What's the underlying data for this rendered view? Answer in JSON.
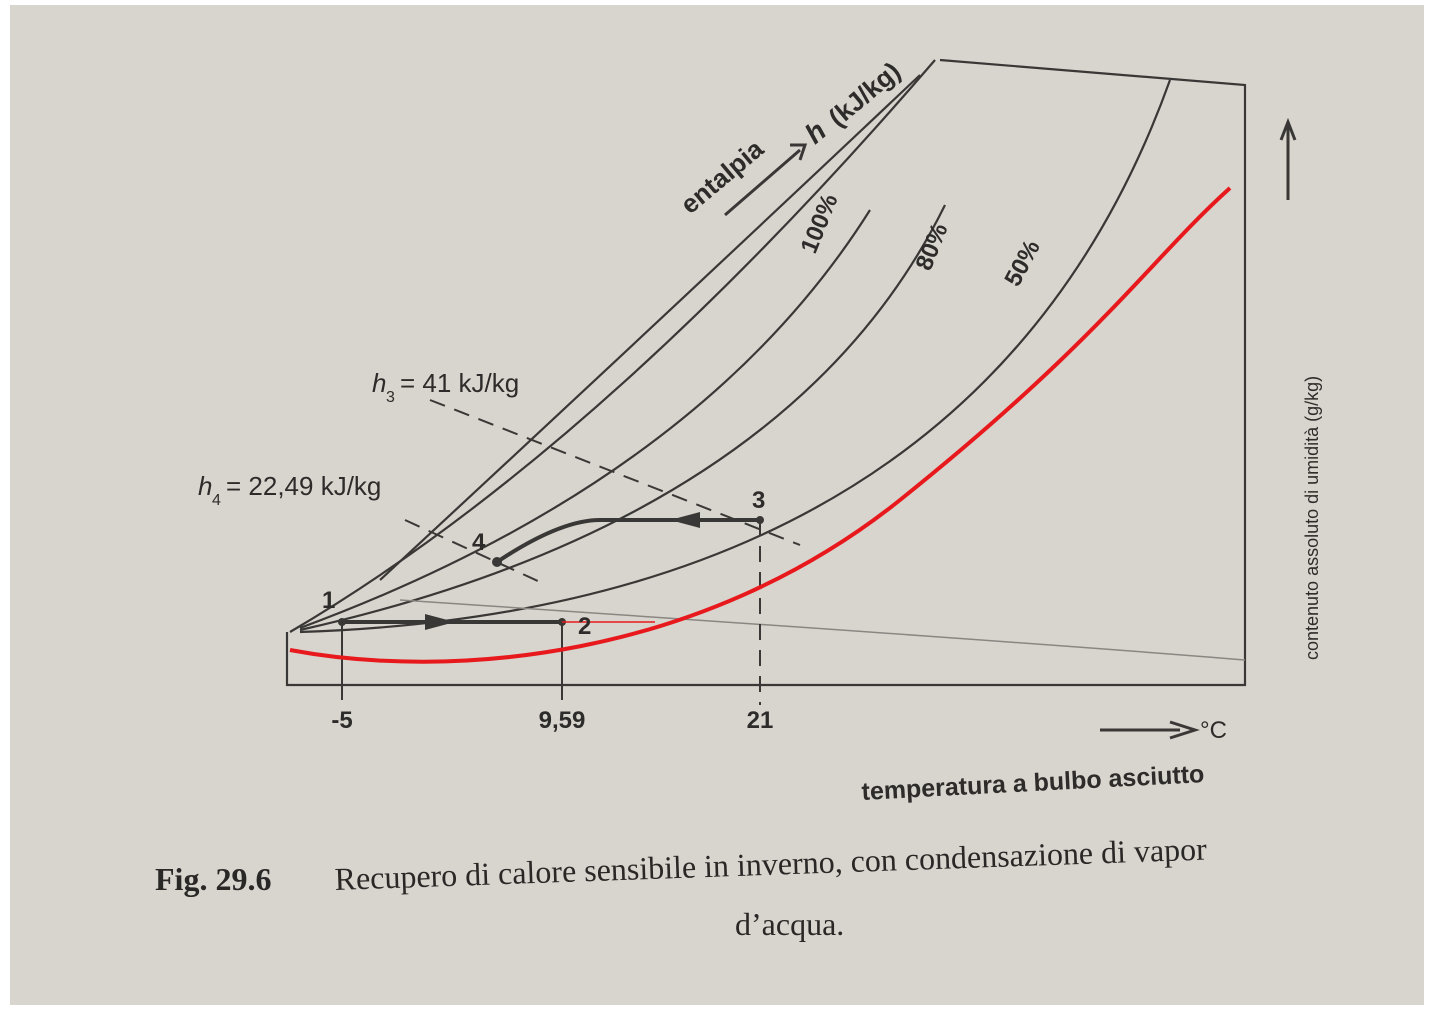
{
  "figure": {
    "enthalpy_axis": {
      "word": "entalpia",
      "symbol": "h",
      "unit": "(kJ/kg)"
    },
    "curves": [
      "100%",
      "80%",
      "50%"
    ],
    "h3": {
      "symbol": "h",
      "sub": "3",
      "text": "= 41 kJ/kg"
    },
    "h4": {
      "symbol": "h",
      "sub": "4",
      "text": "= 22,49 kJ/kg"
    },
    "points": [
      "1",
      "2",
      "3",
      "4"
    ],
    "x_ticks": [
      "-5",
      "9,59",
      "21"
    ],
    "x_unit": "°C",
    "x_label": "temperatura a bulbo asciutto",
    "y_label": "contenuto assoluto di umidità (g/kg)",
    "caption": {
      "number": "Fig. 29.6",
      "line1": "Recupero di calore sensibile in inverno, con condensazione di vapor",
      "line2": "d’acqua."
    }
  }
}
